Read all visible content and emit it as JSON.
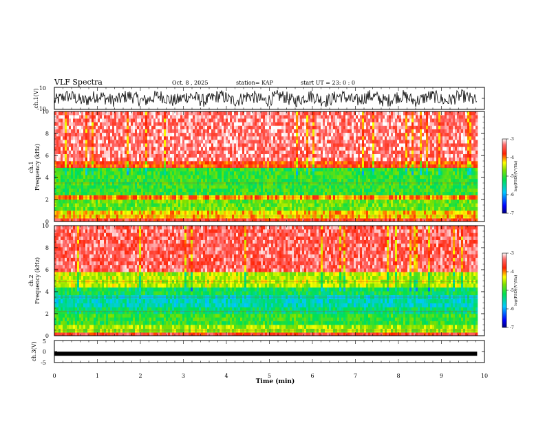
{
  "header": {
    "title": "VLF Spectra",
    "date": "Oct. 8 , 2025",
    "station": "station= KAP",
    "start": "start UT =  23: 0 : 0"
  },
  "colors": {
    "spectrum_scale": [
      "#000080",
      "#0000ff",
      "#00c8ff",
      "#00e050",
      "#7ee000",
      "#ffff00",
      "#ff2000",
      "#ff6a6a",
      "#ffffff"
    ]
  },
  "chart_data": [
    {
      "type": "line",
      "name": "ch1-waveform",
      "ylabel": "ch.1(V)",
      "y_tick_labels": [
        "10",
        "-10"
      ],
      "ylim": [
        -10,
        10
      ],
      "xlim": [
        0,
        9.83
      ],
      "description_series": "dense broadband waveform, amplitude mostly between -8 and 8 V"
    },
    {
      "type": "heatmap",
      "name": "ch1-spectrogram",
      "ylabel": "ch.1\nFrequency (kHz)",
      "y_tick_labels": [
        "0",
        "2",
        "4",
        "6",
        "8",
        "10"
      ],
      "ylim": [
        0,
        10
      ],
      "xlim": [
        0,
        9.83
      ],
      "bands": [
        {
          "from": 0,
          "to": 0.3,
          "logpsd": -3.6
        },
        {
          "from": 0.3,
          "to": 1.0,
          "logpsd": -4.2
        },
        {
          "from": 1.0,
          "to": 2.0,
          "logpsd": -4.8
        },
        {
          "from": 2.0,
          "to": 2.4,
          "logpsd": -4.0
        },
        {
          "from": 2.4,
          "to": 3.9,
          "logpsd": -5.0
        },
        {
          "from": 3.9,
          "to": 4.9,
          "logpsd": -5.0
        },
        {
          "from": 4.9,
          "to": 5.5,
          "logpsd": -3.8
        },
        {
          "from": 5.5,
          "to": 10,
          "logpsd": -3.3
        }
      ],
      "colorbar": {
        "label": "log(PSD)(V²/Hz)",
        "min": -7,
        "max": -3,
        "tick_labels": [
          "-3",
          "-4",
          "-5",
          "-6",
          "-7"
        ]
      }
    },
    {
      "type": "heatmap",
      "name": "ch2-spectrogram",
      "ylabel": "ch.2\nFrequency (kHz)",
      "y_tick_labels": [
        "0",
        "2",
        "4",
        "6",
        "8",
        "10"
      ],
      "ylim": [
        0,
        10
      ],
      "xlim": [
        0,
        9.83
      ],
      "bands": [
        {
          "from": 0,
          "to": 0.3,
          "logpsd": -3.6
        },
        {
          "from": 0.3,
          "to": 1.0,
          "logpsd": -4.6
        },
        {
          "from": 1.0,
          "to": 2.0,
          "logpsd": -5.0
        },
        {
          "from": 2.0,
          "to": 2.6,
          "logpsd": -5.3
        },
        {
          "from": 2.6,
          "to": 3.7,
          "logpsd": -5.6
        },
        {
          "from": 3.7,
          "to": 4.4,
          "logpsd": -5.2
        },
        {
          "from": 4.4,
          "to": 5.8,
          "logpsd": -4.5
        },
        {
          "from": 5.8,
          "to": 10,
          "logpsd": -3.4
        }
      ],
      "colorbar": {
        "label": "log(PSD)(V²/Hz)",
        "min": -7,
        "max": -3,
        "tick_labels": [
          "-3",
          "-4",
          "-5",
          "-6",
          "-7"
        ]
      }
    },
    {
      "type": "line",
      "name": "ch3-waveform",
      "ylabel": "ch.3(V)",
      "y_tick_labels": [
        "5",
        "0",
        "-5"
      ],
      "ylim": [
        -5,
        5
      ],
      "xlim": [
        0,
        9.83
      ],
      "level": -1.0
    }
  ],
  "x_axis": {
    "label": "Time (min)",
    "range": [
      0,
      10
    ],
    "tick_labels": [
      "0",
      "1",
      "2",
      "3",
      "4",
      "5",
      "6",
      "7",
      "8",
      "9",
      "10"
    ]
  }
}
